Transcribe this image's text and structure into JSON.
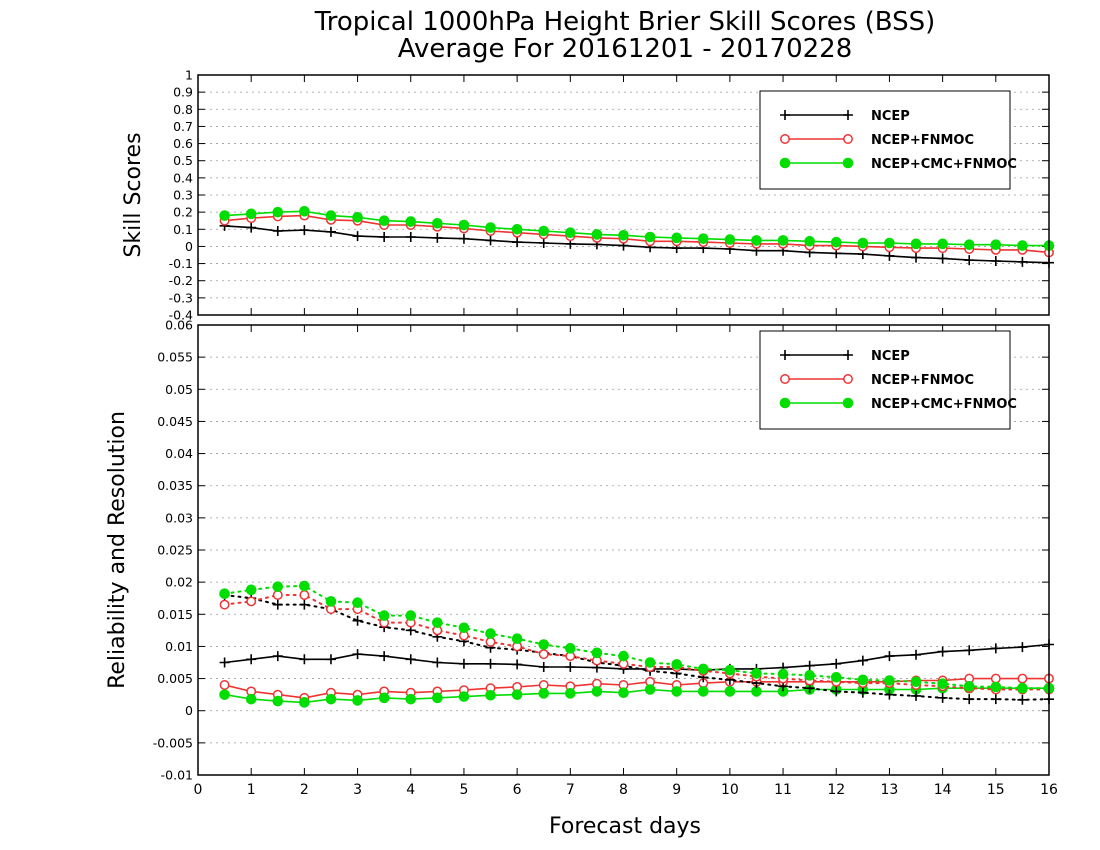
{
  "title_line1": "Tropical 1000hPa Height Brier Skill Scores (BSS)",
  "title_line2": "Average For 20161201 - 20170228",
  "xlabel": "Forecast days",
  "colors": {
    "NCEP": "#000000",
    "NCEP+FNMOC": "#ee3333",
    "NCEP+CMC+FNMOC": "#00dd00"
  },
  "chart_data": [
    {
      "type": "line",
      "ylabel": "Skill Scores",
      "xlim": [
        0,
        16
      ],
      "ylim": [
        -0.4,
        1
      ],
      "xticks": [
        "0",
        "1",
        "2",
        "3",
        "4",
        "5",
        "6",
        "7",
        "8",
        "9",
        "10",
        "11",
        "12",
        "13",
        "14",
        "15",
        "16"
      ],
      "yticks": [
        "-0.4",
        "-0.3",
        "-0.2",
        "-0.1",
        "0",
        "0.1",
        "0.2",
        "0.3",
        "0.4",
        "0.5",
        "0.6",
        "0.7",
        "0.8",
        "0.9",
        "1"
      ],
      "grid": true,
      "legend_position": "top-right",
      "x": [
        0.5,
        1,
        1.5,
        2,
        2.5,
        3,
        3.5,
        4,
        4.5,
        5,
        5.5,
        6,
        6.5,
        7,
        7.5,
        8,
        8.5,
        9,
        9.5,
        10,
        10.5,
        11,
        11.5,
        12,
        12.5,
        13,
        13.5,
        14,
        14.5,
        15,
        15.5,
        16
      ],
      "series": [
        {
          "name": "NCEP",
          "style": "solid",
          "marker": "plus",
          "values": [
            0.12,
            0.11,
            0.09,
            0.095,
            0.085,
            0.06,
            0.055,
            0.055,
            0.05,
            0.045,
            0.035,
            0.025,
            0.02,
            0.015,
            0.012,
            0.005,
            -0.005,
            -0.01,
            -0.01,
            -0.015,
            -0.025,
            -0.025,
            -0.035,
            -0.04,
            -0.045,
            -0.055,
            -0.065,
            -0.07,
            -0.08,
            -0.085,
            -0.09,
            -0.095
          ]
        },
        {
          "name": "NCEP+FNMOC",
          "style": "solid",
          "marker": "open-circle",
          "values": [
            0.15,
            0.165,
            0.175,
            0.18,
            0.155,
            0.15,
            0.125,
            0.125,
            0.115,
            0.105,
            0.09,
            0.08,
            0.07,
            0.06,
            0.05,
            0.045,
            0.03,
            0.03,
            0.025,
            0.02,
            0.015,
            0.015,
            0.005,
            0.005,
            0.0,
            -0.005,
            -0.01,
            -0.01,
            -0.015,
            -0.02,
            -0.02,
            -0.035
          ]
        },
        {
          "name": "NCEP+CMC+FNMOC",
          "style": "solid",
          "marker": "filled-circle",
          "values": [
            0.18,
            0.19,
            0.2,
            0.205,
            0.18,
            0.17,
            0.15,
            0.145,
            0.135,
            0.125,
            0.11,
            0.1,
            0.09,
            0.08,
            0.07,
            0.065,
            0.055,
            0.05,
            0.045,
            0.04,
            0.035,
            0.035,
            0.03,
            0.025,
            0.02,
            0.02,
            0.015,
            0.015,
            0.01,
            0.01,
            0.005,
            0.005
          ]
        }
      ]
    },
    {
      "type": "line",
      "ylabel": "Reliability and Resolution",
      "xlim": [
        0,
        16
      ],
      "ylim": [
        -0.01,
        0.06
      ],
      "xticks": [
        "0",
        "1",
        "2",
        "3",
        "4",
        "5",
        "6",
        "7",
        "8",
        "9",
        "10",
        "11",
        "12",
        "13",
        "14",
        "15",
        "16"
      ],
      "yticks": [
        "-0.01",
        "-0.005",
        "0",
        "0.005",
        "0.01",
        "0.015",
        "0.02",
        "0.025",
        "0.03",
        "0.035",
        "0.04",
        "0.045",
        "0.05",
        "0.055",
        "0.06"
      ],
      "grid": true,
      "legend_position": "top-right",
      "x": [
        0.5,
        1,
        1.5,
        2,
        2.5,
        3,
        3.5,
        4,
        4.5,
        5,
        5.5,
        6,
        6.5,
        7,
        7.5,
        8,
        8.5,
        9,
        9.5,
        10,
        10.5,
        11,
        11.5,
        12,
        12.5,
        13,
        13.5,
        14,
        14.5,
        15,
        15.5,
        16
      ],
      "series": [
        {
          "name": "NCEP",
          "group": "reliability",
          "style": "solid",
          "marker": "plus",
          "values": [
            0.0075,
            0.008,
            0.0085,
            0.008,
            0.008,
            0.0088,
            0.0085,
            0.008,
            0.0075,
            0.0073,
            0.0073,
            0.0072,
            0.0068,
            0.0068,
            0.0067,
            0.0065,
            0.0065,
            0.0065,
            0.0063,
            0.0065,
            0.0065,
            0.0067,
            0.007,
            0.0073,
            0.0078,
            0.0085,
            0.0087,
            0.0092,
            0.0094,
            0.0097,
            0.0099,
            0.0103
          ]
        },
        {
          "name": "NCEP+FNMOC",
          "group": "reliability",
          "style": "solid",
          "marker": "open-circle",
          "values": [
            0.004,
            0.003,
            0.0025,
            0.002,
            0.0028,
            0.0025,
            0.003,
            0.0028,
            0.003,
            0.0032,
            0.0035,
            0.0037,
            0.004,
            0.0038,
            0.0042,
            0.004,
            0.0045,
            0.004,
            0.0043,
            0.0045,
            0.0045,
            0.0045,
            0.0045,
            0.0045,
            0.0045,
            0.0045,
            0.0047,
            0.0047,
            0.005,
            0.005,
            0.005,
            0.005
          ]
        },
        {
          "name": "NCEP+CMC+FNMOC",
          "group": "reliability",
          "style": "solid",
          "marker": "filled-circle",
          "values": [
            0.0025,
            0.0018,
            0.0015,
            0.0013,
            0.0018,
            0.0016,
            0.002,
            0.0018,
            0.002,
            0.0022,
            0.0024,
            0.0025,
            0.0027,
            0.0027,
            0.003,
            0.0028,
            0.0033,
            0.003,
            0.003,
            0.003,
            0.003,
            0.003,
            0.0033,
            0.0033,
            0.0033,
            0.0033,
            0.0033,
            0.0035,
            0.0035,
            0.0035,
            0.0035,
            0.0035
          ]
        },
        {
          "name": "NCEP",
          "group": "resolution",
          "style": "dotted",
          "marker": "plus",
          "values": [
            0.018,
            0.0175,
            0.0165,
            0.0165,
            0.0158,
            0.014,
            0.013,
            0.0125,
            0.0115,
            0.0108,
            0.0098,
            0.0095,
            0.009,
            0.0085,
            0.0075,
            0.007,
            0.0062,
            0.0058,
            0.0052,
            0.0048,
            0.0043,
            0.0038,
            0.0035,
            0.003,
            0.0028,
            0.0025,
            0.0023,
            0.002,
            0.0018,
            0.0018,
            0.0017,
            0.0018
          ]
        },
        {
          "name": "NCEP+FNMOC",
          "group": "resolution",
          "style": "dotted",
          "marker": "open-circle",
          "values": [
            0.0165,
            0.017,
            0.018,
            0.018,
            0.0158,
            0.0158,
            0.0137,
            0.0137,
            0.0125,
            0.0117,
            0.0107,
            0.01,
            0.0088,
            0.0085,
            0.0078,
            0.0073,
            0.0068,
            0.0068,
            0.0062,
            0.0058,
            0.0053,
            0.005,
            0.0047,
            0.0045,
            0.0043,
            0.0043,
            0.004,
            0.0038,
            0.0035,
            0.0033,
            0.0033,
            0.0033
          ]
        },
        {
          "name": "NCEP+CMC+FNMOC",
          "group": "resolution",
          "style": "dotted",
          "marker": "filled-circle",
          "values": [
            0.0182,
            0.0188,
            0.0193,
            0.0194,
            0.017,
            0.0168,
            0.0148,
            0.0148,
            0.0137,
            0.0129,
            0.012,
            0.0112,
            0.0103,
            0.0097,
            0.009,
            0.0085,
            0.0075,
            0.0072,
            0.0065,
            0.0063,
            0.0058,
            0.0057,
            0.0055,
            0.0052,
            0.0048,
            0.0047,
            0.0045,
            0.0042,
            0.0038,
            0.0037,
            0.0035,
            0.0035
          ]
        }
      ]
    }
  ]
}
